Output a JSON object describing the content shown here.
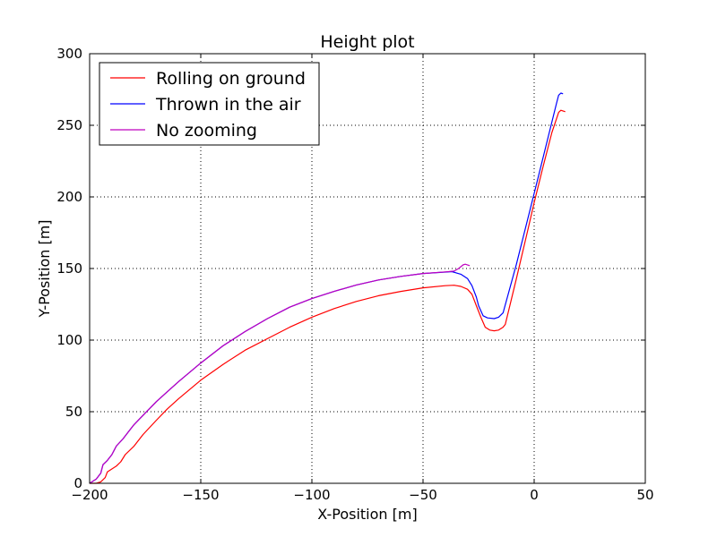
{
  "chart_data": {
    "type": "line",
    "title": "Height plot",
    "xlabel": "X-Position [m]",
    "ylabel": "Y-Position [m]",
    "xlim": [
      -200,
      50
    ],
    "ylim": [
      0,
      300
    ],
    "xticks": [
      -200,
      -150,
      -100,
      -50,
      0,
      50
    ],
    "yticks": [
      0,
      50,
      100,
      150,
      200,
      250,
      300
    ],
    "xtick_labels": [
      "−200",
      "−150",
      "−100",
      "−50",
      "0",
      "50"
    ],
    "ytick_labels": [
      "0",
      "50",
      "100",
      "150",
      "200",
      "250",
      "300"
    ],
    "grid": true,
    "legend_position": "top-left",
    "series": [
      {
        "name": "Rolling on ground",
        "color": "#ff0000",
        "points": [
          [
            -200,
            0
          ],
          [
            -197,
            0
          ],
          [
            -195,
            1
          ],
          [
            -193,
            4
          ],
          [
            -192,
            8
          ],
          [
            -190,
            10
          ],
          [
            -188,
            12
          ],
          [
            -186,
            15
          ],
          [
            -184,
            20
          ],
          [
            -180,
            26
          ],
          [
            -176,
            34
          ],
          [
            -170,
            44
          ],
          [
            -165,
            52
          ],
          [
            -160,
            59
          ],
          [
            -150,
            72
          ],
          [
            -140,
            83
          ],
          [
            -130,
            93
          ],
          [
            -120,
            101
          ],
          [
            -110,
            109
          ],
          [
            -100,
            116
          ],
          [
            -90,
            122
          ],
          [
            -80,
            127
          ],
          [
            -70,
            131
          ],
          [
            -60,
            134
          ],
          [
            -50,
            136.5
          ],
          [
            -40,
            138
          ],
          [
            -36,
            138.3
          ],
          [
            -33,
            137.5
          ],
          [
            -30,
            135.5
          ],
          [
            -28,
            132
          ],
          [
            -26,
            124
          ],
          [
            -24,
            116
          ],
          [
            -22,
            109
          ],
          [
            -20,
            107
          ],
          [
            -18,
            106.5
          ],
          [
            -16,
            107
          ],
          [
            -14,
            109
          ],
          [
            -13,
            111
          ],
          [
            -8,
            143
          ],
          [
            -3,
            176
          ],
          [
            0,
            196
          ],
          [
            4,
            221
          ],
          [
            8,
            245
          ],
          [
            11,
            259
          ],
          [
            12,
            260.5
          ],
          [
            14,
            259.5
          ]
        ]
      },
      {
        "name": "Thrown in the air",
        "color": "#0000ff",
        "points": [
          [
            -200,
            0
          ],
          [
            -197,
            3
          ],
          [
            -195,
            7
          ],
          [
            -194,
            13
          ],
          [
            -192,
            16
          ],
          [
            -190,
            20
          ],
          [
            -188,
            26
          ],
          [
            -185,
            31
          ],
          [
            -182,
            37
          ],
          [
            -180,
            41
          ],
          [
            -175,
            49
          ],
          [
            -170,
            57
          ],
          [
            -165,
            64
          ],
          [
            -160,
            71
          ],
          [
            -150,
            84
          ],
          [
            -140,
            96
          ],
          [
            -130,
            106
          ],
          [
            -120,
            115
          ],
          [
            -110,
            123
          ],
          [
            -100,
            129
          ],
          [
            -90,
            134
          ],
          [
            -80,
            138.5
          ],
          [
            -70,
            142
          ],
          [
            -60,
            144.5
          ],
          [
            -50,
            146.5
          ],
          [
            -40,
            147.5
          ],
          [
            -37,
            147.8
          ],
          [
            -33,
            146
          ],
          [
            -30,
            143
          ],
          [
            -28,
            138
          ],
          [
            -26,
            130
          ],
          [
            -25,
            124
          ],
          [
            -23,
            117
          ],
          [
            -21,
            115.5
          ],
          [
            -18,
            115
          ],
          [
            -16,
            116
          ],
          [
            -14,
            119
          ],
          [
            -8,
            153
          ],
          [
            -2,
            190
          ],
          [
            2,
            215
          ],
          [
            6,
            240
          ],
          [
            10,
            265
          ],
          [
            11,
            271
          ],
          [
            12,
            272.5
          ],
          [
            13,
            272
          ]
        ]
      },
      {
        "name": "No zooming",
        "color": "#bf00bf",
        "points": [
          [
            -200,
            0
          ],
          [
            -197,
            3
          ],
          [
            -195,
            7
          ],
          [
            -194,
            13
          ],
          [
            -192,
            16
          ],
          [
            -190,
            20
          ],
          [
            -188,
            26
          ],
          [
            -185,
            31
          ],
          [
            -182,
            37
          ],
          [
            -180,
            41
          ],
          [
            -175,
            49
          ],
          [
            -170,
            57
          ],
          [
            -165,
            64
          ],
          [
            -160,
            71
          ],
          [
            -150,
            84
          ],
          [
            -140,
            96
          ],
          [
            -130,
            106
          ],
          [
            -120,
            115
          ],
          [
            -110,
            123
          ],
          [
            -100,
            129
          ],
          [
            -90,
            134
          ],
          [
            -80,
            138.5
          ],
          [
            -70,
            142
          ],
          [
            -60,
            144.5
          ],
          [
            -50,
            146.5
          ],
          [
            -40,
            147.6
          ],
          [
            -36,
            148.2
          ],
          [
            -34,
            150
          ],
          [
            -32,
            152.5
          ],
          [
            -31,
            153
          ],
          [
            -29,
            152
          ]
        ]
      }
    ]
  }
}
